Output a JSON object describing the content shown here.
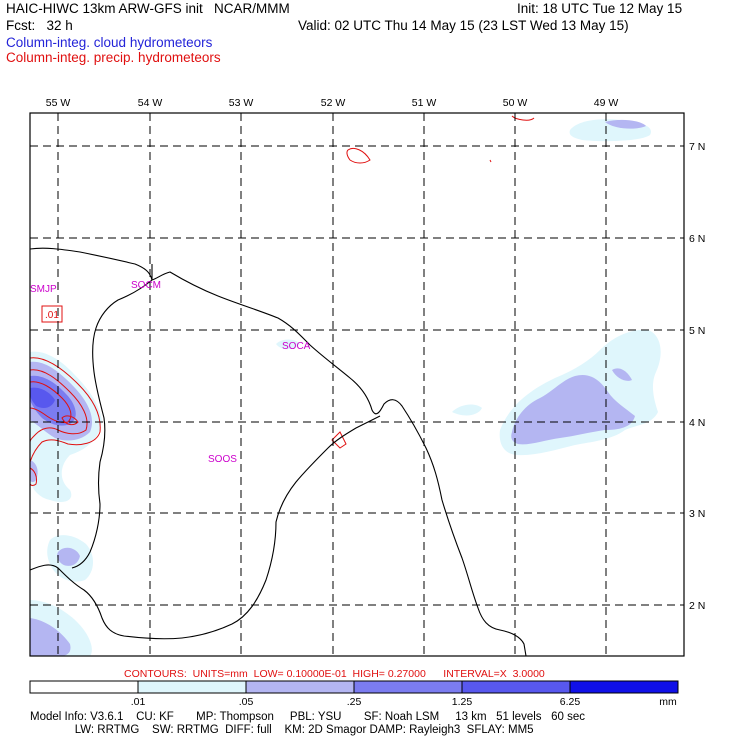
{
  "header": {
    "title": "HAIC-HIWC 13km ARW-GFS init   NCAR/MMM",
    "init": "Init: 18 UTC Tue 12 May 15",
    "fcst": "Fcst:   32 h",
    "valid": "Valid: 02 UTC Thu 14 May 15 (23 LST Wed 13 May 15)",
    "legend_cloud": "Column-integ. cloud hydrometeors",
    "legend_precip": "Column-integ. precip. hydrometeors"
  },
  "colors": {
    "cloud_text": "#2424d8",
    "precip_line": "#e01010",
    "station_label": "#cc00cc",
    "shade_1": "#dff6fc",
    "shade_2": "#b4b6f2",
    "shade_3": "#7b7cf0",
    "shade_4": "#5858ee",
    "shade_5": "#1010e8"
  },
  "map": {
    "lon_labels": [
      "55 W",
      "54 W",
      "53 W",
      "52 W",
      "51 W",
      "50 W",
      "49 W"
    ],
    "lat_labels": [
      "7 N",
      "6 N",
      "5 N",
      "4 N",
      "3 N",
      "2 N"
    ],
    "stations": [
      "SMJP",
      "SOCM",
      "SOCA",
      "SOOS"
    ],
    "contour_label": ".01"
  },
  "contours_line": "CONTOURS:  UNITS=mm  LOW= 0.10000E-01  HIGH= 0.27000      INTERVAL=X  3.0000",
  "colorbar": {
    "ticks": [
      ".01",
      ".05",
      ".25",
      "1.25",
      "6.25"
    ],
    "unit": "mm"
  },
  "footer": {
    "line1": "Model Info: V3.6.1    CU: KF       MP: Thompson     PBL: YSU       SF: Noah LSM     13 km   51 levels   60 sec",
    "line2": "              LW: RRTMG    SW: RRTMG  DIFF: full    KM: 2D Smagor DAMP: Rayleigh3  SFLAY: MM5"
  }
}
